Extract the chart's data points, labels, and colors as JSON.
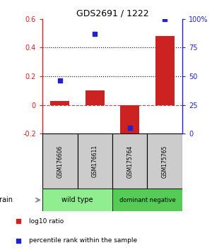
{
  "title": "GDS2691 / 1222",
  "samples": [
    "GSM176606",
    "GSM176611",
    "GSM175764",
    "GSM175765"
  ],
  "log10_ratio": [
    0.03,
    0.1,
    -0.2,
    0.48
  ],
  "percentile_rank_pct": [
    46,
    87,
    5,
    100
  ],
  "bar_color": "#cc2222",
  "dot_color": "#2222cc",
  "ylim_left": [
    -0.2,
    0.6
  ],
  "ylim_right": [
    0,
    100
  ],
  "yticks_left": [
    -0.2,
    0.0,
    0.2,
    0.4,
    0.6
  ],
  "ytick_labels_left": [
    "-0.2",
    "0",
    "0.2",
    "0.4",
    "0.6"
  ],
  "yticks_right": [
    0,
    25,
    50,
    75,
    100
  ],
  "ytick_labels_right": [
    "0",
    "25",
    "50",
    "75",
    "100%"
  ],
  "hlines_dotted": [
    0.2,
    0.4
  ],
  "hline_dashed": 0.0,
  "groups": [
    {
      "label": "wild type",
      "samples": [
        0,
        1
      ],
      "color": "#90ee90"
    },
    {
      "label": "dominant negative",
      "samples": [
        2,
        3
      ],
      "color": "#55cc55"
    }
  ],
  "strain_label": "strain",
  "legend_ratio_label": "log10 ratio",
  "legend_pct_label": "percentile rank within the sample",
  "bg_color": "#ffffff",
  "sample_box_color": "#cccccc",
  "bar_width": 0.55
}
